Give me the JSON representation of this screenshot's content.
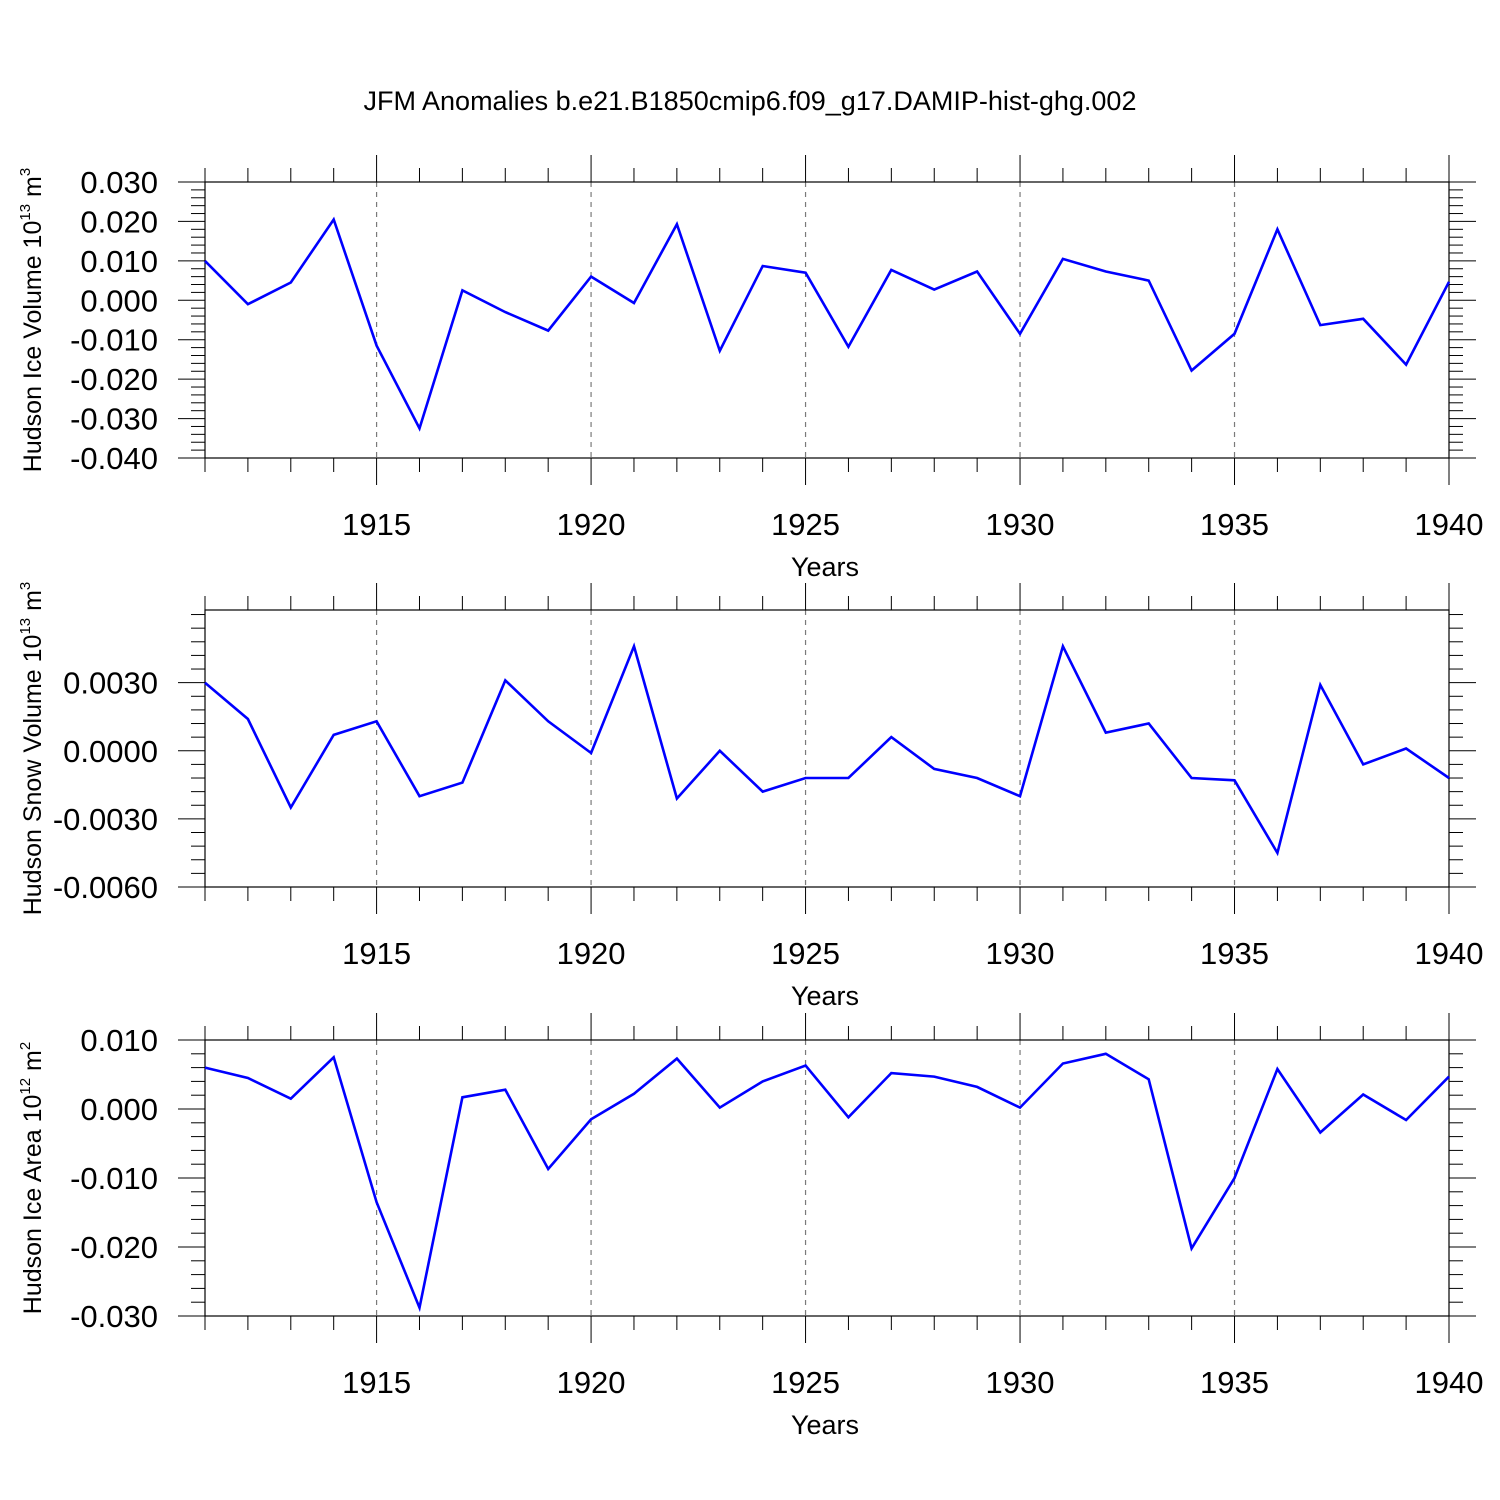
{
  "title": "JFM Anomalies b.e21.B1850cmip6.f09_g17.DAMIP-hist-ghg.002",
  "colors": {
    "line": "#0000ff",
    "grid": "#7a7a7a",
    "axis": "#000000"
  },
  "chart_data": [
    {
      "type": "line",
      "ylabel": {
        "text": "Hudson Ice Volume 10",
        "exponent": "13",
        "unit": " m",
        "unit_exponent": "3"
      },
      "xlabel": "Years",
      "xlim": [
        1911,
        1940
      ],
      "ylim": [
        -0.04,
        0.03
      ],
      "yticks": [
        -0.04,
        -0.03,
        -0.02,
        -0.01,
        0.0,
        0.01,
        0.02,
        0.03
      ],
      "ytick_labels": [
        "-0.040",
        "-0.030",
        "-0.020",
        "-0.010",
        "0.000",
        "0.010",
        "0.020",
        "0.030"
      ],
      "xticks": [
        1915,
        1920,
        1925,
        1930,
        1935,
        1940
      ],
      "xtick_labels": [
        "1915",
        "1920",
        "1925",
        "1930",
        "1935",
        "1940"
      ],
      "grid": "vertical dashed at labeled years",
      "series": [
        {
          "x": [
            1911,
            1912,
            1913,
            1914,
            1915,
            1916,
            1917,
            1918,
            1919,
            1920,
            1921,
            1922,
            1923,
            1924,
            1925,
            1926,
            1927,
            1928,
            1929,
            1930,
            1931,
            1932,
            1933,
            1934,
            1935,
            1936,
            1937,
            1938,
            1939,
            1940
          ],
          "values": [
            0.01,
            -0.001,
            0.0045,
            0.0205,
            -0.0115,
            -0.0325,
            0.0025,
            -0.003,
            -0.0077,
            0.006,
            -0.0007,
            0.0193,
            -0.0128,
            0.0087,
            0.007,
            -0.0118,
            0.0077,
            0.0027,
            0.0073,
            -0.0085,
            0.0105,
            0.0073,
            0.005,
            -0.0178,
            -0.0085,
            0.018,
            -0.0063,
            -0.0047,
            -0.0163,
            0.0047
          ]
        }
      ]
    },
    {
      "type": "line",
      "ylabel": {
        "text": "Hudson Snow Volume 10",
        "exponent": "13",
        "unit": " m",
        "unit_exponent": "3"
      },
      "xlabel": "Years",
      "xlim": [
        1911,
        1940
      ],
      "ylim": [
        -0.006,
        0.0062
      ],
      "yticks": [
        -0.006,
        -0.003,
        0.0,
        0.003
      ],
      "ytick_labels": [
        "-0.0060",
        "-0.0030",
        "0.0000",
        "0.0030"
      ],
      "xticks": [
        1915,
        1920,
        1925,
        1930,
        1935,
        1940
      ],
      "xtick_labels": [
        "1915",
        "1920",
        "1925",
        "1930",
        "1935",
        "1940"
      ],
      "grid": "vertical dashed at labeled years",
      "series": [
        {
          "x": [
            1911,
            1912,
            1913,
            1914,
            1915,
            1916,
            1917,
            1918,
            1919,
            1920,
            1921,
            1922,
            1923,
            1924,
            1925,
            1926,
            1927,
            1928,
            1929,
            1930,
            1931,
            1932,
            1933,
            1934,
            1935,
            1936,
            1937,
            1938,
            1939,
            1940
          ],
          "values": [
            0.003,
            0.0014,
            -0.0025,
            0.0007,
            0.0013,
            -0.002,
            -0.0014,
            0.0031,
            0.0013,
            -0.0001,
            0.0046,
            -0.0021,
            0.0,
            -0.0018,
            -0.0012,
            -0.0012,
            0.0006,
            -0.0008,
            -0.0012,
            -0.002,
            0.0046,
            0.0008,
            0.0012,
            -0.0012,
            -0.0013,
            -0.0045,
            0.0029,
            -0.0006,
            0.0001,
            -0.0012
          ]
        }
      ]
    },
    {
      "type": "line",
      "ylabel": {
        "text": "Hudson Ice Area 10",
        "exponent": "12",
        "unit": " m",
        "unit_exponent": "2"
      },
      "xlabel": "Years",
      "xlim": [
        1911,
        1940
      ],
      "ylim": [
        -0.03,
        0.01
      ],
      "yticks": [
        -0.03,
        -0.02,
        -0.01,
        0.0,
        0.01
      ],
      "ytick_labels": [
        "-0.030",
        "-0.020",
        "-0.010",
        "0.000",
        "0.010"
      ],
      "xticks": [
        1915,
        1920,
        1925,
        1930,
        1935,
        1940
      ],
      "xtick_labels": [
        "1915",
        "1920",
        "1925",
        "1930",
        "1935",
        "1940"
      ],
      "grid": "vertical dashed at labeled years",
      "series": [
        {
          "x": [
            1911,
            1912,
            1913,
            1914,
            1915,
            1916,
            1917,
            1918,
            1919,
            1920,
            1921,
            1922,
            1923,
            1924,
            1925,
            1926,
            1927,
            1928,
            1929,
            1930,
            1931,
            1932,
            1933,
            1934,
            1935,
            1936,
            1937,
            1938,
            1939,
            1940
          ],
          "values": [
            0.006,
            0.0045,
            0.0015,
            0.0075,
            -0.0135,
            -0.0288,
            0.0017,
            0.0028,
            -0.0087,
            -0.0015,
            0.0022,
            0.0073,
            0.0002,
            0.004,
            0.0063,
            -0.0012,
            0.0052,
            0.0047,
            0.0032,
            0.0002,
            0.0066,
            0.008,
            0.0043,
            -0.0202,
            -0.01,
            0.0058,
            -0.0034,
            0.0021,
            -0.0016,
            0.0047
          ]
        }
      ]
    }
  ]
}
